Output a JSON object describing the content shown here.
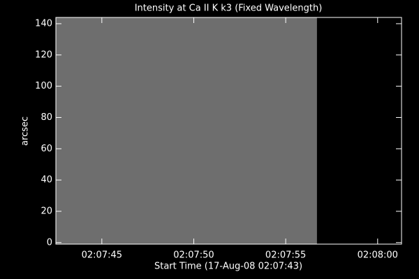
{
  "chart_data": {
    "type": "image",
    "title": "Intensity at Ca II K k3 (Fixed Wavelength)",
    "xlabel": "Start Time (17-Aug-08 02:07:43)",
    "ylabel": "arcsec",
    "xrange": [
      42.5,
      56.7
    ],
    "yrange": [
      -1,
      144
    ],
    "color": "#6e6e6e",
    "xlim": [
      42.5,
      61.3
    ],
    "xticks": [
      {
        "value": 45,
        "label": "02:07:45"
      },
      {
        "value": 50,
        "label": "02:07:50"
      },
      {
        "value": 55,
        "label": "02:07:55"
      },
      {
        "value": 60,
        "label": "02:08:00"
      }
    ],
    "ylim": [
      -1,
      144
    ],
    "yticks": [
      0,
      20,
      40,
      60,
      80,
      100,
      120,
      140
    ]
  }
}
